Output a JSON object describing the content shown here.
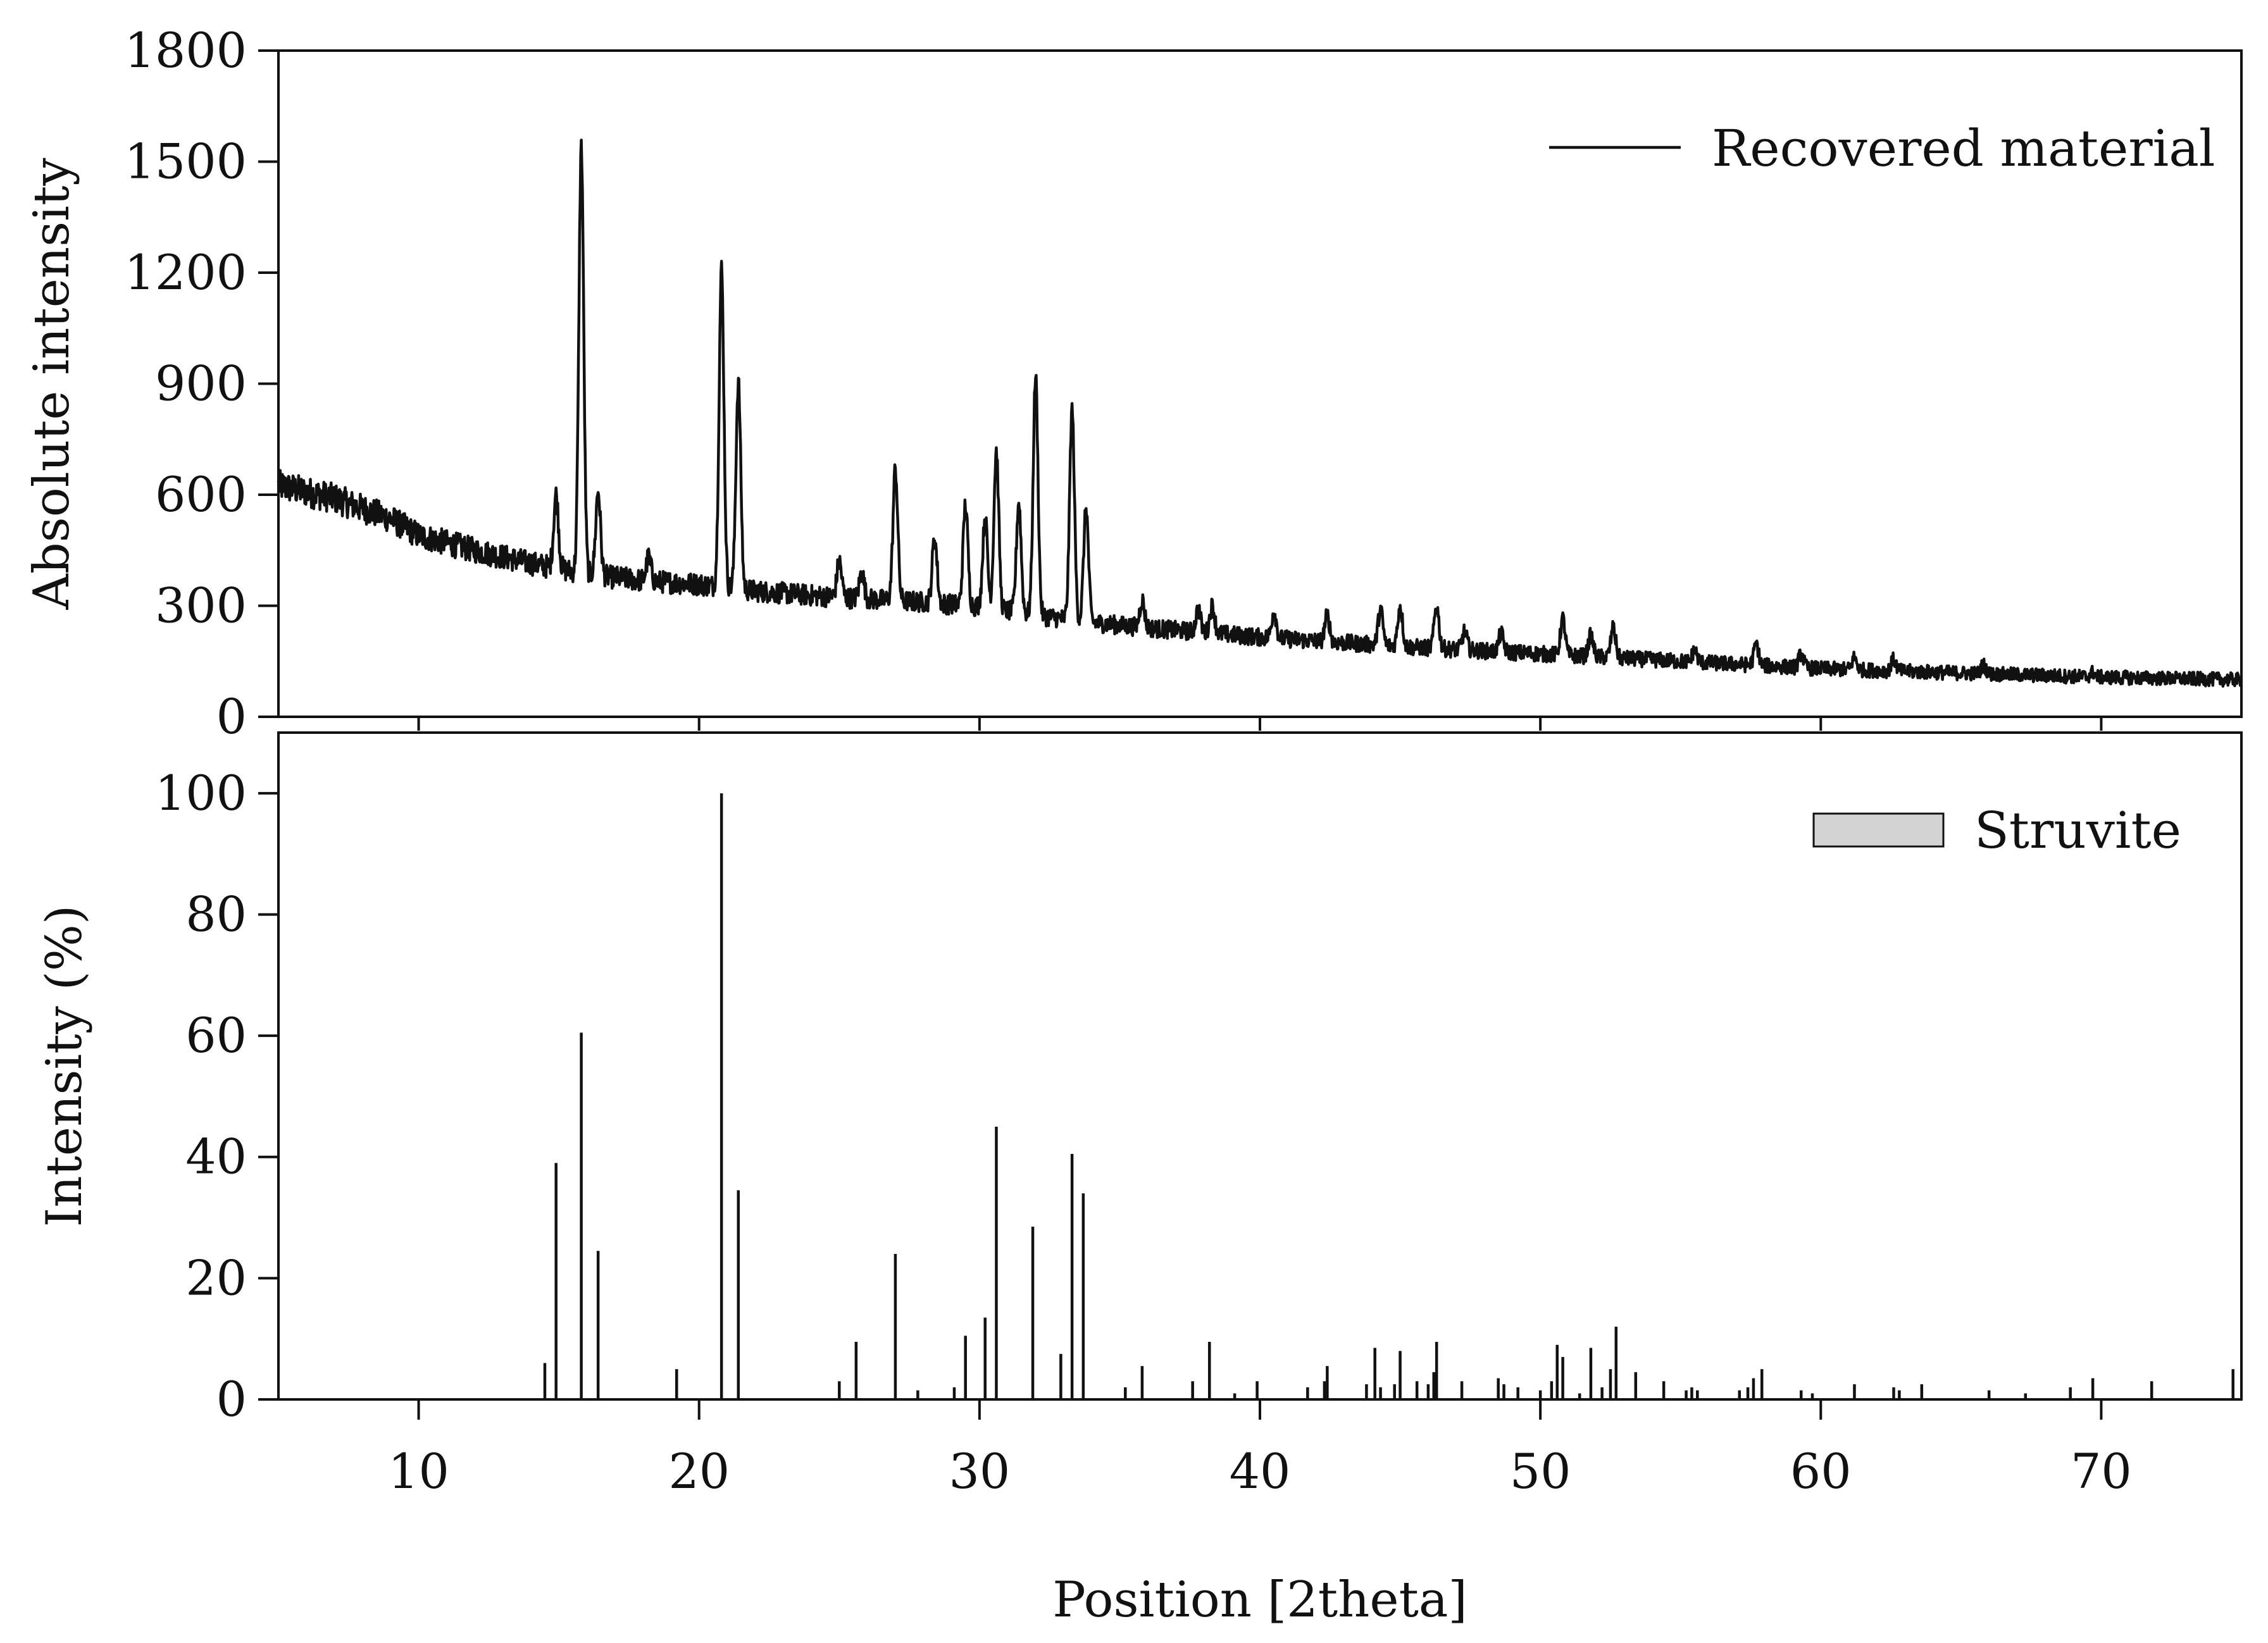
{
  "colors": {
    "line": "#111111",
    "legend_fill": "#d3d3d3",
    "background": "#ffffff"
  },
  "chart_data": [
    {
      "type": "line",
      "ylabel": "Absolute intensity",
      "xlabel": "",
      "xlim": [
        5,
        75
      ],
      "ylim": [
        0,
        1800
      ],
      "yticks": [
        "0",
        "300",
        "600",
        "900",
        "1200",
        "1500",
        "1800"
      ],
      "yticks_values": [
        0,
        300,
        600,
        900,
        1200,
        1500,
        1800
      ],
      "xticks_values": [
        10,
        20,
        30,
        40,
        50,
        60,
        70
      ],
      "grid": false,
      "legend_position": "top-right",
      "series": [
        {
          "name": "Recovered material",
          "background": [
            [
              5,
              625
            ],
            [
              7,
              590
            ],
            [
              9,
              535
            ],
            [
              10,
              490
            ],
            [
              12,
              450
            ],
            [
              14,
              415
            ],
            [
              16,
              385
            ],
            [
              18,
              368
            ],
            [
              20,
              358
            ],
            [
              22,
              340
            ],
            [
              24,
              328
            ],
            [
              26,
              318
            ],
            [
              28,
              310
            ],
            [
              30,
              298
            ],
            [
              32,
              275
            ],
            [
              34,
              255
            ],
            [
              36,
              240
            ],
            [
              38,
              228
            ],
            [
              40,
              215
            ],
            [
              45,
              190
            ],
            [
              50,
              170
            ],
            [
              55,
              150
            ],
            [
              60,
              130
            ],
            [
              65,
              118
            ],
            [
              70,
              107
            ],
            [
              75,
              100
            ]
          ],
          "peaks": [
            {
              "x": 14.9,
              "y": 600
            },
            {
              "x": 15.8,
              "y": 1540
            },
            {
              "x": 16.4,
              "y": 610
            },
            {
              "x": 18.2,
              "y": 430
            },
            {
              "x": 20.8,
              "y": 1210
            },
            {
              "x": 21.4,
              "y": 905
            },
            {
              "x": 25.0,
              "y": 420
            },
            {
              "x": 25.8,
              "y": 390
            },
            {
              "x": 27.0,
              "y": 670
            },
            {
              "x": 28.4,
              "y": 485
            },
            {
              "x": 29.5,
              "y": 575
            },
            {
              "x": 30.2,
              "y": 540
            },
            {
              "x": 30.6,
              "y": 720
            },
            {
              "x": 31.4,
              "y": 580
            },
            {
              "x": 32.0,
              "y": 920
            },
            {
              "x": 33.3,
              "y": 830
            },
            {
              "x": 33.8,
              "y": 565
            },
            {
              "x": 35.8,
              "y": 315
            },
            {
              "x": 37.8,
              "y": 290
            },
            {
              "x": 38.3,
              "y": 300
            },
            {
              "x": 40.5,
              "y": 285
            },
            {
              "x": 42.4,
              "y": 275
            },
            {
              "x": 44.3,
              "y": 290
            },
            {
              "x": 45.0,
              "y": 300
            },
            {
              "x": 46.3,
              "y": 300
            },
            {
              "x": 47.3,
              "y": 230
            },
            {
              "x": 48.6,
              "y": 225
            },
            {
              "x": 50.8,
              "y": 265
            },
            {
              "x": 51.8,
              "y": 220
            },
            {
              "x": 52.6,
              "y": 240
            },
            {
              "x": 55.5,
              "y": 180
            },
            {
              "x": 57.7,
              "y": 195
            },
            {
              "x": 59.3,
              "y": 170
            },
            {
              "x": 61.2,
              "y": 160
            },
            {
              "x": 62.6,
              "y": 155
            },
            {
              "x": 65.8,
              "y": 140
            },
            {
              "x": 69.7,
              "y": 120
            }
          ]
        }
      ]
    },
    {
      "type": "bar",
      "ylabel": "Intensity (%)",
      "xlabel": "Position [2theta]",
      "xlim": [
        5,
        75
      ],
      "ylim": [
        0,
        110
      ],
      "yticks": [
        "0",
        "20",
        "40",
        "60",
        "80",
        "100"
      ],
      "yticks_values": [
        0,
        20,
        40,
        60,
        80,
        100
      ],
      "xticks": [
        "10",
        "20",
        "30",
        "40",
        "50",
        "60",
        "70"
      ],
      "xticks_values": [
        10,
        20,
        30,
        40,
        50,
        60,
        70
      ],
      "grid": false,
      "legend_position": "top-right",
      "series": [
        {
          "name": "Struvite",
          "x": [
            14.5,
            14.9,
            15.8,
            16.4,
            19.2,
            20.8,
            21.4,
            25.0,
            25.6,
            27.0,
            27.8,
            29.1,
            29.5,
            30.2,
            30.6,
            31.9,
            32.9,
            33.3,
            33.7,
            35.2,
            35.8,
            37.6,
            38.2,
            39.1,
            39.9,
            41.7,
            42.3,
            42.4,
            43.8,
            44.1,
            44.3,
            44.8,
            45.0,
            45.6,
            46.0,
            46.2,
            46.3,
            47.2,
            48.5,
            48.7,
            49.2,
            50.0,
            50.4,
            50.6,
            50.8,
            51.4,
            51.8,
            52.2,
            52.5,
            52.7,
            53.4,
            54.4,
            55.2,
            55.4,
            55.6,
            57.1,
            57.4,
            57.6,
            57.9,
            59.3,
            59.7,
            61.2,
            62.6,
            62.8,
            63.6,
            66.0,
            67.3,
            68.9,
            69.7,
            71.8,
            74.7
          ],
          "values": [
            6,
            39,
            60.5,
            24.5,
            5,
            100,
            34.5,
            3,
            9.5,
            24,
            1.5,
            2,
            10.5,
            13.5,
            45,
            28.5,
            7.5,
            40.5,
            34,
            2,
            5.5,
            3,
            9.5,
            1,
            3,
            2,
            3,
            5.5,
            2.5,
            8.5,
            2,
            2.5,
            8,
            3,
            2.5,
            4.5,
            9.5,
            3,
            3.5,
            2.5,
            2,
            1.5,
            3,
            9,
            7,
            1,
            8.5,
            2,
            5,
            12,
            4.5,
            3,
            1.5,
            2,
            1.5,
            1.5,
            2,
            3.5,
            5,
            1.5,
            1,
            2.5,
            2,
            1.5,
            2.5,
            1.5,
            1,
            2,
            3.5,
            3,
            5
          ]
        }
      ]
    }
  ]
}
